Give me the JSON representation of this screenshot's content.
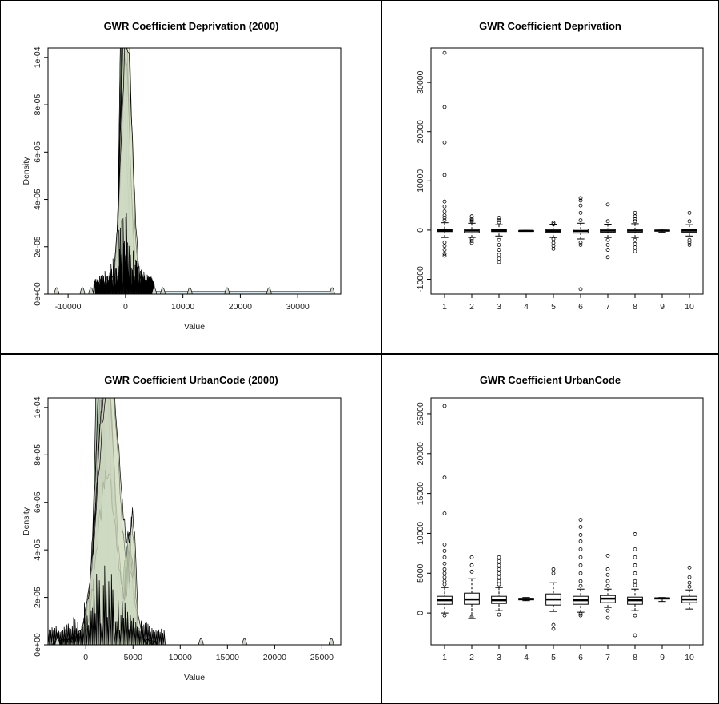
{
  "colors": {
    "frame": "#000000",
    "density_fills": [
      "#2f6b3c",
      "#6b9a66",
      "#8fb07c",
      "#a9bfa0",
      "#bcc7d6",
      "#c9c2b8",
      "#b3b8d4",
      "#d7e8f0",
      "#e3e7b2",
      "#c7d6bf"
    ],
    "box_outline": "#000000",
    "tail_fill": "#d6eaf2"
  },
  "chart_data": [
    {
      "type": "area",
      "title": "GWR Coefficient Deprivation (2000)",
      "xlabel": "Value",
      "ylabel": "Density",
      "xlim": [
        -13500,
        37500
      ],
      "ylim": [
        0,
        0.000104
      ],
      "xticks": [
        "-10000",
        "0",
        "10000",
        "20000",
        "30000"
      ],
      "xtick_values": [
        -10000,
        0,
        10000,
        20000,
        30000
      ],
      "yticks": [
        "0e+00",
        "2e-05",
        "4e-05",
        "6e-05",
        "8e-05",
        "1e-04"
      ],
      "ytick_values": [
        0,
        2e-05,
        4e-05,
        6e-05,
        8e-05,
        0.0001
      ],
      "series_count": 10,
      "peak_center": -200,
      "peak_spread": 900,
      "outlier_bumps": [
        -12000,
        -7500,
        -6000,
        5000,
        6500,
        11200,
        17700,
        25000,
        36000
      ],
      "tail_band": {
        "from": -1000,
        "to": 36000,
        "height": 1.2e-06
      }
    },
    {
      "type": "box",
      "title": "GWR Coefficient Deprivation",
      "xlabel": "",
      "ylabel": "",
      "categories": [
        "1",
        "2",
        "3",
        "4",
        "5",
        "6",
        "7",
        "8",
        "9",
        "10"
      ],
      "ylim": [
        -13000,
        37000
      ],
      "yticks": [
        "-10000",
        "0",
        "10000",
        "20000",
        "30000"
      ],
      "ytick_values": [
        -10000,
        0,
        10000,
        20000,
        30000
      ],
      "boxes": [
        {
          "q1": -300,
          "median": -100,
          "q3": 100,
          "lo": -1500,
          "hi": 1500,
          "outliers": [
            36000,
            25000,
            17800,
            11200,
            5800,
            4800,
            3800,
            3000,
            2500,
            2000,
            -2500,
            -3200,
            -4000,
            -4800,
            -5200
          ]
        },
        {
          "q1": -500,
          "median": -100,
          "q3": 200,
          "lo": -1500,
          "hi": 1400,
          "outliers": [
            2800,
            2300,
            2000,
            1800,
            -1800,
            -2200,
            -2600
          ]
        },
        {
          "q1": -300,
          "median": -100,
          "q3": 100,
          "lo": -1200,
          "hi": 1100,
          "outliers": [
            2500,
            2000,
            1600,
            -2000,
            -3000,
            -4000,
            -5000,
            -5800,
            -6500
          ]
        },
        {
          "q1": -200,
          "median": -150,
          "q3": -100,
          "lo": -250,
          "hi": -50,
          "outliers": []
        },
        {
          "q1": -500,
          "median": -200,
          "q3": 100,
          "lo": -1500,
          "hi": 1200,
          "outliers": [
            1500,
            1200,
            -1800,
            -2600,
            -3200,
            -3800
          ]
        },
        {
          "q1": -600,
          "median": -200,
          "q3": 200,
          "lo": -1800,
          "hi": 1400,
          "outliers": [
            6500,
            6000,
            5000,
            3500,
            2000,
            -2500,
            -3000,
            -12000
          ]
        },
        {
          "q1": -400,
          "median": -100,
          "q3": 200,
          "lo": -1500,
          "hi": 1200,
          "outliers": [
            5200,
            1800,
            -2000,
            -3000,
            -4000,
            -5500
          ]
        },
        {
          "q1": -400,
          "median": -100,
          "q3": 200,
          "lo": -1500,
          "hi": 1300,
          "outliers": [
            3500,
            2800,
            2200,
            1800,
            -2000,
            -2800,
            -3500,
            -4300
          ]
        },
        {
          "q1": -200,
          "median": -100,
          "q3": 0,
          "lo": -400,
          "hi": 200,
          "outliers": []
        },
        {
          "q1": -400,
          "median": -100,
          "q3": 100,
          "lo": -1200,
          "hi": 1100,
          "outliers": [
            3500,
            1800,
            -2000,
            -2500,
            -3000
          ]
        }
      ]
    },
    {
      "type": "area",
      "title": "GWR Coefficient UrbanCode (2000)",
      "xlabel": "Value",
      "ylabel": "Density",
      "xlim": [
        -4000,
        27000
      ],
      "ylim": [
        0,
        0.000104
      ],
      "xticks": [
        "0",
        "5000",
        "10000",
        "15000",
        "20000",
        "25000"
      ],
      "xtick_values": [
        0,
        5000,
        10000,
        15000,
        20000,
        25000
      ],
      "yticks": [
        "0e+00",
        "2e-05",
        "4e-05",
        "6e-05",
        "8e-05",
        "1e-04"
      ],
      "ytick_values": [
        0,
        2e-05,
        4e-05,
        6e-05,
        8e-05,
        0.0001
      ],
      "series_count": 10,
      "peak_center": 2000,
      "peak_spread": 1100,
      "secondary_peak": 4400,
      "outlier_bumps": [
        -3000,
        12200,
        16800,
        26000
      ],
      "tail_band": {
        "from": 0,
        "to": 0,
        "height": 0
      }
    },
    {
      "type": "box",
      "title": "GWR Coefficient UrbanCode",
      "xlabel": "",
      "ylabel": "",
      "categories": [
        "1",
        "2",
        "3",
        "4",
        "5",
        "6",
        "7",
        "8",
        "9",
        "10"
      ],
      "ylim": [
        -4000,
        27000
      ],
      "yticks": [
        "0",
        "5000",
        "10000",
        "15000",
        "20000",
        "25000"
      ],
      "ytick_values": [
        0,
        5000,
        10000,
        15000,
        20000,
        25000
      ],
      "boxes": [
        {
          "q1": 1100,
          "median": 1600,
          "q3": 2100,
          "lo": 0,
          "hi": 3200,
          "outliers": [
            26000,
            17000,
            12500,
            8600,
            7800,
            7000,
            6200,
            5500,
            5000,
            4500,
            4000,
            3600,
            -300
          ]
        },
        {
          "q1": 1100,
          "median": 1700,
          "q3": 2500,
          "lo": -700,
          "hi": 4300,
          "outliers": [
            7000,
            6000,
            5200,
            -500
          ]
        },
        {
          "q1": 1200,
          "median": 1600,
          "q3": 2100,
          "lo": 300,
          "hi": 3200,
          "outliers": [
            7000,
            6500,
            6000,
            5500,
            5000,
            4500,
            4000,
            3600,
            -200
          ]
        },
        {
          "q1": 1650,
          "median": 1750,
          "q3": 1850,
          "lo": 1550,
          "hi": 1950,
          "outliers": []
        },
        {
          "q1": 1000,
          "median": 1700,
          "q3": 2400,
          "lo": 200,
          "hi": 3800,
          "outliers": [
            5500,
            5000,
            -1500,
            -2000
          ]
        },
        {
          "q1": 1100,
          "median": 1600,
          "q3": 2100,
          "lo": 100,
          "hi": 3000,
          "outliers": [
            11700,
            10800,
            9800,
            9000,
            8000,
            7000,
            6000,
            5000,
            4000,
            3400,
            -100,
            -300
          ]
        },
        {
          "q1": 1300,
          "median": 1800,
          "q3": 2200,
          "lo": 700,
          "hi": 3000,
          "outliers": [
            7200,
            5500,
            4800,
            4000,
            3400,
            300,
            -600
          ]
        },
        {
          "q1": 1100,
          "median": 1600,
          "q3": 2000,
          "lo": 300,
          "hi": 3000,
          "outliers": [
            9900,
            8000,
            7000,
            6000,
            5000,
            4000,
            3500,
            -300,
            -2800
          ]
        },
        {
          "q1": 1750,
          "median": 1850,
          "q3": 1900,
          "lo": 1450,
          "hi": 1950,
          "outliers": []
        },
        {
          "q1": 1300,
          "median": 1700,
          "q3": 2100,
          "lo": 500,
          "hi": 2900,
          "outliers": [
            5700,
            4500,
            3800,
            3300
          ]
        }
      ]
    }
  ]
}
